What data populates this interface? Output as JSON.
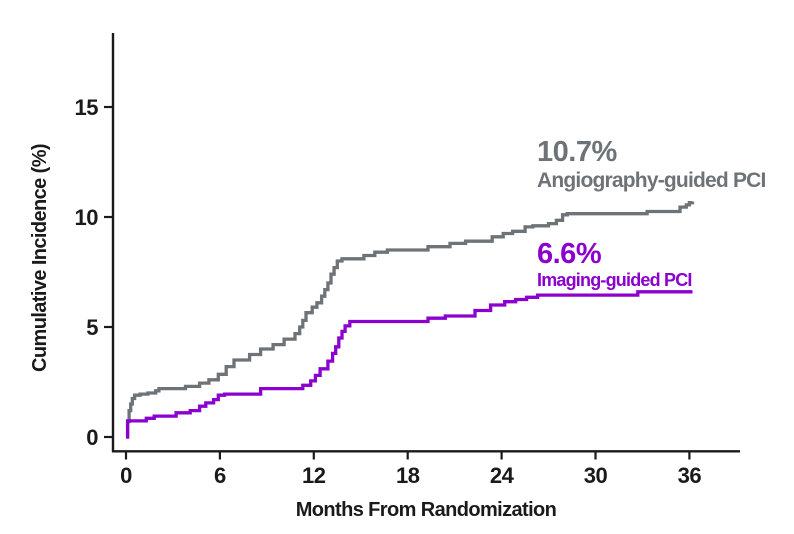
{
  "chart_data": {
    "type": "line",
    "subtype": "step-after cumulative incidence curves (Kaplan-Meier style)",
    "title": "",
    "xlabel": "Months From Randomization",
    "ylabel": "Cumulative Incidence (%)",
    "xlim": [
      0,
      39.5
    ],
    "ylim": [
      0,
      18.4
    ],
    "x_ticks": [
      0,
      6,
      12,
      18,
      24,
      30,
      36
    ],
    "y_ticks": [
      0,
      5,
      10,
      15
    ],
    "grid": false,
    "legend_position": "inline-annotations",
    "axis_color": "#1a1a1a",
    "series": [
      {
        "name": "Angiography-guided PCI",
        "annotation_value": "10.7%",
        "final_value_percent": 10.7,
        "color": "#6E7377",
        "points": [
          [
            0,
            0
          ],
          [
            0.1,
            0.7
          ],
          [
            0.2,
            1.2
          ],
          [
            0.3,
            1.5
          ],
          [
            0.4,
            1.75
          ],
          [
            0.55,
            1.9
          ],
          [
            0.9,
            1.95
          ],
          [
            1.4,
            2.0
          ],
          [
            1.9,
            2.1
          ],
          [
            2.1,
            2.2
          ],
          [
            3.8,
            2.3
          ],
          [
            4.7,
            2.45
          ],
          [
            5.3,
            2.6
          ],
          [
            5.9,
            2.85
          ],
          [
            6.4,
            3.2
          ],
          [
            6.9,
            3.5
          ],
          [
            7.9,
            3.75
          ],
          [
            8.6,
            4.0
          ],
          [
            9.4,
            4.2
          ],
          [
            10.1,
            4.45
          ],
          [
            10.8,
            4.7
          ],
          [
            11.1,
            5.0
          ],
          [
            11.3,
            5.3
          ],
          [
            11.5,
            5.65
          ],
          [
            11.9,
            5.9
          ],
          [
            12.2,
            6.1
          ],
          [
            12.5,
            6.4
          ],
          [
            12.7,
            6.7
          ],
          [
            12.9,
            7.0
          ],
          [
            13.1,
            7.4
          ],
          [
            13.3,
            7.7
          ],
          [
            13.5,
            8.0
          ],
          [
            13.8,
            8.1
          ],
          [
            15.2,
            8.25
          ],
          [
            15.9,
            8.4
          ],
          [
            16.7,
            8.5
          ],
          [
            19.3,
            8.65
          ],
          [
            20.7,
            8.8
          ],
          [
            21.7,
            8.9
          ],
          [
            23.4,
            9.1
          ],
          [
            24.1,
            9.25
          ],
          [
            24.7,
            9.35
          ],
          [
            25.5,
            9.55
          ],
          [
            26.0,
            9.6
          ],
          [
            27.0,
            9.7
          ],
          [
            27.5,
            9.85
          ],
          [
            27.9,
            10.1
          ],
          [
            28.2,
            10.15
          ],
          [
            33.3,
            10.25
          ],
          [
            35.4,
            10.45
          ],
          [
            35.8,
            10.55
          ],
          [
            36.0,
            10.65
          ],
          [
            36.2,
            10.7
          ]
        ]
      },
      {
        "name": "Imaging-guided PCI",
        "annotation_value": "6.6%",
        "final_value_percent": 6.6,
        "color": "#8B00CE",
        "points": [
          [
            0,
            0
          ],
          [
            0.1,
            0.73
          ],
          [
            1.3,
            0.85
          ],
          [
            1.8,
            0.95
          ],
          [
            3.2,
            1.1
          ],
          [
            4.1,
            1.2
          ],
          [
            4.7,
            1.4
          ],
          [
            5.1,
            1.55
          ],
          [
            5.6,
            1.7
          ],
          [
            5.9,
            1.9
          ],
          [
            6.3,
            1.95
          ],
          [
            8.6,
            2.2
          ],
          [
            11.3,
            2.35
          ],
          [
            11.8,
            2.55
          ],
          [
            12.1,
            2.8
          ],
          [
            12.4,
            3.1
          ],
          [
            12.9,
            3.45
          ],
          [
            13.2,
            3.8
          ],
          [
            13.4,
            4.1
          ],
          [
            13.6,
            4.5
          ],
          [
            13.8,
            4.8
          ],
          [
            14.0,
            5.05
          ],
          [
            14.3,
            5.25
          ],
          [
            19.3,
            5.4
          ],
          [
            20.4,
            5.5
          ],
          [
            22.3,
            5.75
          ],
          [
            23.3,
            6.0
          ],
          [
            24.2,
            6.15
          ],
          [
            24.9,
            6.25
          ],
          [
            25.6,
            6.35
          ],
          [
            26.3,
            6.45
          ],
          [
            32.7,
            6.6
          ],
          [
            36.2,
            6.6
          ]
        ]
      }
    ]
  },
  "annotations": {
    "angiography_pct": "10.7%",
    "angiography_name": "Angiography-guided PCI",
    "imaging_pct": "6.6%",
    "imaging_name": "Imaging-guided PCI"
  }
}
